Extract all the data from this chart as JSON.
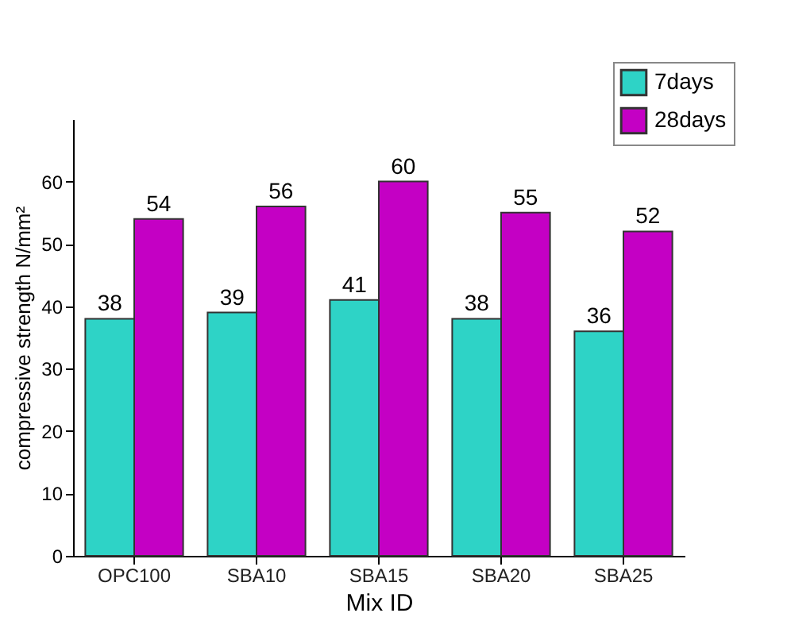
{
  "chart_data": {
    "type": "bar",
    "xlabel": "Mix ID",
    "ylabel": "compressive strength N/mm²",
    "categories": [
      "OPC100",
      "SBA10",
      "SBA15",
      "SBA20",
      "SBA25"
    ],
    "series": [
      {
        "name": "7days",
        "color": "#2ed3c6",
        "values": [
          38,
          39,
          41,
          38,
          36
        ]
      },
      {
        "name": "28days",
        "color": "#c400c4",
        "values": [
          54,
          56,
          60,
          55,
          52
        ]
      }
    ],
    "ylim": [
      0,
      70
    ],
    "yticks": [
      0,
      10,
      20,
      30,
      40,
      50,
      60
    ],
    "grid": false,
    "legend": "top right",
    "data_labels": true
  }
}
